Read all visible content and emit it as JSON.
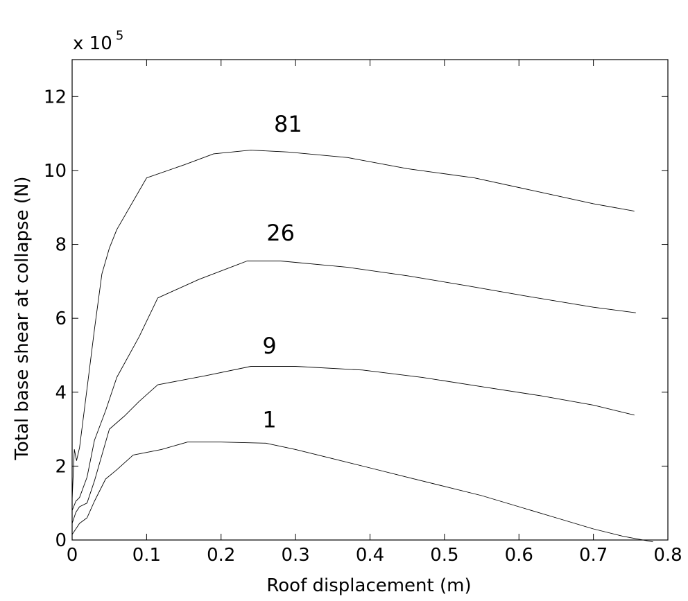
{
  "chart_data": {
    "type": "line",
    "title": "",
    "xlabel": "Roof displacement (m)",
    "ylabel": "Total base shear at collapse (N)",
    "y_multiplier": {
      "base": "x 10",
      "exponent": "5"
    },
    "xlim": [
      0,
      0.8
    ],
    "ylim": [
      0,
      13
    ],
    "xticks": [
      0,
      0.1,
      0.2,
      0.3,
      0.4,
      0.5,
      0.6,
      0.7,
      0.8
    ],
    "xtick_labels": [
      "0",
      "0.1",
      "0.2",
      "0.3",
      "0.4",
      "0.5",
      "0.6",
      "0.7",
      "0.8"
    ],
    "yticks": [
      0,
      2,
      4,
      6,
      8,
      10,
      12
    ],
    "ytick_labels": [
      "0",
      "2",
      "4",
      "6",
      "8",
      "10",
      "12"
    ],
    "grid": false,
    "series": [
      {
        "name": "81",
        "x": [
          0,
          0.003,
          0.006,
          0.01,
          0.02,
          0.03,
          0.04,
          0.05,
          0.06,
          0.1,
          0.15,
          0.19,
          0.24,
          0.29,
          0.37,
          0.45,
          0.54,
          0.62,
          0.7,
          0.755
        ],
        "y": [
          1.1,
          2.45,
          2.15,
          2.5,
          4.1,
          5.7,
          7.2,
          7.9,
          8.4,
          9.8,
          10.15,
          10.45,
          10.55,
          10.5,
          10.35,
          10.05,
          9.8,
          9.45,
          9.1,
          8.9
        ]
      },
      {
        "name": "26",
        "x": [
          0,
          0.005,
          0.01,
          0.02,
          0.03,
          0.045,
          0.06,
          0.09,
          0.115,
          0.17,
          0.235,
          0.28,
          0.37,
          0.45,
          0.53,
          0.61,
          0.7,
          0.757
        ],
        "y": [
          0.8,
          1.05,
          1.15,
          1.7,
          2.7,
          3.5,
          4.4,
          5.5,
          6.55,
          7.05,
          7.55,
          7.55,
          7.38,
          7.15,
          6.88,
          6.6,
          6.3,
          6.15
        ]
      },
      {
        "name": "9",
        "x": [
          0,
          0.005,
          0.01,
          0.02,
          0.03,
          0.05,
          0.07,
          0.09,
          0.115,
          0.18,
          0.24,
          0.3,
          0.39,
          0.47,
          0.55,
          0.63,
          0.7,
          0.755
        ],
        "y": [
          0.45,
          0.75,
          0.9,
          1.0,
          1.6,
          3.0,
          3.35,
          3.75,
          4.2,
          4.45,
          4.7,
          4.7,
          4.6,
          4.4,
          4.15,
          3.9,
          3.65,
          3.38
        ]
      },
      {
        "name": "1",
        "x": [
          0,
          0.005,
          0.01,
          0.02,
          0.03,
          0.045,
          0.06,
          0.082,
          0.12,
          0.155,
          0.2,
          0.26,
          0.3,
          0.35,
          0.4,
          0.45,
          0.5,
          0.55,
          0.6,
          0.65,
          0.7,
          0.74,
          0.78
        ],
        "y": [
          0.15,
          0.3,
          0.45,
          0.6,
          1.05,
          1.65,
          1.9,
          2.3,
          2.45,
          2.65,
          2.65,
          2.62,
          2.45,
          2.2,
          1.95,
          1.7,
          1.45,
          1.2,
          0.9,
          0.6,
          0.3,
          0.1,
          -0.05
        ]
      }
    ],
    "annotations": [
      {
        "text": "81",
        "x": 0.29,
        "y": 11.05
      },
      {
        "text": "26",
        "x": 0.28,
        "y": 8.1
      },
      {
        "text": "9",
        "x": 0.265,
        "y": 5.05
      },
      {
        "text": "1",
        "x": 0.265,
        "y": 3.05
      }
    ]
  }
}
